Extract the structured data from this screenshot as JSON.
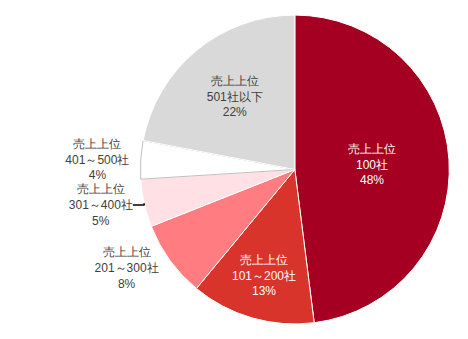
{
  "chart_data": {
    "type": "pie",
    "categories": [
      "売上上位\n100社",
      "売上上位\n101～200社",
      "売上上位\n201～300社",
      "売上上位\n301～400社",
      "売上上位\n401～500社",
      "売上上位\n501社以下"
    ],
    "values": [
      48,
      13,
      8,
      5,
      4,
      22
    ],
    "value_labels": [
      "48%",
      "13%",
      "8%",
      "5%",
      "4%",
      "22%"
    ],
    "colors": [
      "#a50021",
      "#d9342b",
      "#ff7c80",
      "#ffe0e4",
      "#ffffff",
      "#d9d9d9"
    ],
    "data_labels": true
  }
}
